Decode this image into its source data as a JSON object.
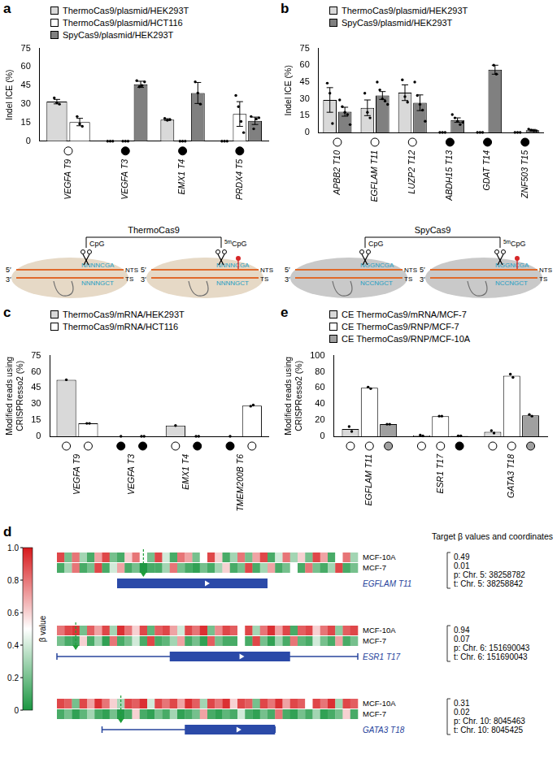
{
  "chart_data": [
    {
      "panel": "a",
      "type": "bar",
      "y_label": "Indel ICE (%)",
      "categories": [
        "VEGFA T9",
        "VEGFA T3",
        "EMX1 T4",
        "PRDX4 T5"
      ],
      "ylim": [
        0,
        75
      ],
      "yticks": [
        0,
        15,
        30,
        45,
        60,
        75
      ],
      "grid": false,
      "legend": "top-left",
      "series": [
        {
          "name": "ThermoCas9/plasmid/HEK293T",
          "color": "#d9d9d9",
          "values": [
            32,
            0,
            17.5,
            0
          ],
          "errors": [
            1.8,
            null,
            0.7,
            null
          ],
          "points": [
            [
              35,
              31,
              30
            ],
            [
              0,
              0,
              0
            ],
            [
              18.5,
              17,
              17.5
            ],
            [
              0,
              0,
              0
            ]
          ]
        },
        {
          "name": "ThermoCas9/plasmid/HCT116",
          "color": "#ffffff",
          "values": [
            15.5,
            0,
            0,
            22
          ],
          "errors": [
            3,
            null,
            null,
            10
          ],
          "points": [
            [
              20,
              14,
              12
            ],
            [
              0,
              0,
              0
            ],
            [
              0,
              0,
              0
            ],
            [
              37,
              28,
              16,
              7
            ]
          ]
        },
        {
          "name": "SpyCas9/plasmid/HEK293T",
          "color": "#808080",
          "values": [
            null,
            46,
            39,
            16.5
          ],
          "errors": [
            null,
            2.5,
            8.5,
            3
          ],
          "points": [
            [],
            [
              49,
              44,
              45,
              48
            ],
            [
              48,
              39,
              30
            ],
            [
              20,
              10,
              18,
              19
            ]
          ]
        }
      ],
      "methylation_circles": [
        [
          "#ffffff"
        ],
        [
          "#000000"
        ],
        [
          "#000000"
        ],
        [
          "#000000"
        ]
      ]
    },
    {
      "panel": "b",
      "type": "bar",
      "y_label": "Indel ICE (%)",
      "categories": [
        "APBB2 T10",
        "EGFLAM T11",
        "LUZP2 T12",
        "ABDH15 T13",
        "GDAT T14",
        "ZNF503 T15"
      ],
      "ylim": [
        0,
        75
      ],
      "yticks": [
        0,
        15,
        30,
        45,
        60,
        75
      ],
      "grid": false,
      "legend": "top-left",
      "series": [
        {
          "name": "ThermoCas9/plasmid/HEK293T",
          "color": "#d9d9d9",
          "values": [
            29,
            22,
            35.5,
            0,
            0,
            0
          ],
          "errors": [
            11,
            7,
            7,
            null,
            null,
            null
          ],
          "points": [
            [
              44,
              35,
              8
            ],
            [
              35,
              18,
              13
            ],
            [
              47,
              32,
              27
            ],
            [
              0,
              0,
              0
            ],
            [
              0,
              0,
              0
            ],
            [
              0,
              0,
              0
            ]
          ]
        },
        {
          "name": "SpyCas9/plasmid/HEK293T",
          "color": "#808080",
          "values": [
            18.5,
            33,
            26.5,
            11,
            56,
            2
          ],
          "errors": [
            4,
            3.5,
            7,
            2,
            4,
            0.7
          ],
          "points": [
            [
              29,
              23,
              18,
              16,
              7
            ],
            [
              45,
              38,
              30,
              28,
              25
            ],
            [
              45,
              33,
              25,
              20,
              10
            ],
            [
              16,
              13,
              10,
              7,
              9
            ],
            [
              60,
              52
            ],
            [
              3,
              2,
              1.5,
              1.5
            ]
          ]
        }
      ],
      "methylation_circles": [
        [
          "#ffffff"
        ],
        [
          "#ffffff"
        ],
        [
          "#ffffff"
        ],
        [
          "#000000"
        ],
        [
          "#000000"
        ],
        [
          "#000000"
        ]
      ]
    },
    {
      "panel": "c",
      "type": "bar",
      "y_label": "Modified reads using CRISPResso2 (%)",
      "categories": [
        "VEGFA T9",
        "VEGFA T3",
        "EMX1 T4",
        "TMEM200B T6"
      ],
      "ylim": [
        0,
        75
      ],
      "yticks": [
        0,
        15,
        30,
        45,
        60,
        75
      ],
      "grid": false,
      "legend": "top-left",
      "series": [
        {
          "name": "ThermoCas9/mRNA/HEK293T",
          "color": "#d9d9d9",
          "values": [
            52.5,
            0,
            10,
            0
          ],
          "points": [
            [
              52.5
            ],
            [
              0
            ],
            [
              10
            ],
            [
              0
            ]
          ]
        },
        {
          "name": "ThermoCas9/mRNA/HCT116",
          "color": "#ffffff",
          "values": [
            12,
            0,
            0,
            28.5
          ],
          "points": [
            [
              12,
              12
            ],
            [
              0,
              0
            ],
            [
              0,
              0
            ],
            [
              28,
              29
            ]
          ]
        }
      ],
      "methylation_circles": [
        [
          "#ffffff",
          "#ffffff"
        ],
        [
          "#000000",
          "#000000"
        ],
        [
          "#ffffff",
          "#000000"
        ],
        [
          "#000000",
          "#ffffff"
        ]
      ]
    },
    {
      "panel": "e",
      "type": "bar",
      "y_label": "Modified reads using CRISPResso2 (%)",
      "categories": [
        "EGFLAM T11",
        "ESR1 T17",
        "GATA3 T18"
      ],
      "ylim": [
        0,
        100
      ],
      "yticks": [
        0,
        20,
        40,
        60,
        80,
        100
      ],
      "grid": false,
      "legend": "top-left",
      "series": [
        {
          "name": "CE ThermoCas9/mRNA/MCF-7",
          "color": "#d9d9d9",
          "values": [
            9,
            1,
            5.5
          ],
          "points": [
            [
              12,
              6
            ],
            [
              1.5,
              0.5
            ],
            [
              7,
              4
            ]
          ]
        },
        {
          "name": "CE ThermoCas9/RNP/MCF-7",
          "color": "#ffffff",
          "values": [
            60,
            25,
            75
          ],
          "points": [
            [
              61,
              59
            ],
            [
              25,
              25
            ],
            [
              77,
              73
            ]
          ]
        },
        {
          "name": "CE ThermoCas9/RNP/MCF-10A",
          "color": "#a0a0a0",
          "values": [
            15,
            0.5,
            26
          ],
          "points": [
            [
              15,
              15
            ],
            [
              0.5,
              0.5
            ],
            [
              27,
              25
            ]
          ]
        }
      ],
      "methylation_circles": [
        [
          "#ffffff",
          "#ffffff",
          "#a0a0a0"
        ],
        [
          "#ffffff",
          "#ffffff",
          "#000000"
        ],
        [
          "#ffffff",
          "#ffffff",
          "#a0a0a0"
        ]
      ]
    },
    {
      "panel": "d",
      "type": "heatmap",
      "title": "Target β values and coordinates",
      "colorbar": {
        "label": "β value",
        "zlim": [
          0,
          1
        ],
        "ticks": [
          0,
          0.2,
          0.4,
          0.6,
          0.8,
          {
            "value": 1,
            "label": "1.0"
          }
        ],
        "colorscale": [
          "#1a9641",
          "#ffffff",
          "#d7191c"
        ]
      },
      "targets": [
        {
          "gene": "EGFLAM T11",
          "target_cell": 11,
          "target_beta": [
            0.49,
            0.01
          ],
          "coordinates": [
            "p: Chr. 5: 38258782",
            "t: Chr. 5: 38258842"
          ],
          "gene_model": {
            "exon": [
              8,
              28
            ]
          },
          "rows": [
            {
              "name": "MCF-10A",
              "cells": [
                0.9,
                0.2,
                0.8,
                0.3,
                0.1,
                0.7,
                0.9,
                0.2,
                0.1,
                0.6,
                0.8,
                0.49,
                0.2,
                0.9,
                0.4,
                0.1,
                0.8,
                0.7,
                0.2,
                0.5,
                0.9,
                0.6,
                0.1,
                0.3,
                0.8,
                0.2,
                0.7,
                0.9,
                0.1,
                0.4,
                0.8,
                0.3,
                0.6,
                0.2,
                0.9,
                0.7,
                0.1,
                0.5,
                0.8,
                0.3
              ]
            },
            {
              "name": "MCF-7",
              "cells": [
                0.1,
                0.3,
                0.8,
                0.1,
                0.2,
                0.9,
                0.1,
                0.4,
                0.7,
                0.1,
                0.2,
                0.01,
                0.1,
                0.1,
                0.3,
                0.8,
                0.2,
                0.1,
                0.05,
                0.2,
                0.1,
                0.3,
                0.6,
                0.1,
                0.2,
                0.9,
                0.1,
                0.3,
                0.7,
                0.1,
                0.2,
                0.5,
                0.1,
                0.8,
                0.2,
                0.1,
                0.3,
                0.9,
                0.1,
                0.2
              ]
            }
          ]
        },
        {
          "gene": "ESR1 T17",
          "target_cell": 2,
          "target_beta": [
            0.94,
            0.07
          ],
          "coordinates": [
            "p: Chr. 6: 151690043",
            "t: Chr. 6: 151690043"
          ],
          "gene_model": {
            "line": [
              0,
              40
            ],
            "exon": [
              15,
              31
            ]
          },
          "rows": [
            {
              "name": "MCF-10A",
              "cells": [
                0.8,
                0.9,
                0.94,
                0.2,
                0.85,
                0.7,
                0.9,
                0.3,
                0.95,
                0.8,
                0.6,
                0.9,
                0.15,
                0.85,
                0.9,
                0.7,
                0.4,
                0.9,
                0.8,
                0.95,
                0.2,
                0.75,
                0.9,
                0.85,
                0.5,
                0.9,
                0.3,
                0.8,
                0.95,
                0.7,
                0.9,
                0.1,
                0.85,
                0.9,
                0.6,
                0.8,
                0.9,
                0.25,
                0.85,
                0.9
              ]
            },
            {
              "name": "MCF-7",
              "cells": [
                0.2,
                0.1,
                0.07,
                0.6,
                0.1,
                0.3,
                0.05,
                0.8,
                0.1,
                0.2,
                0.4,
                0.1,
                0.9,
                0.1,
                0.15,
                0.3,
                0.7,
                0.1,
                0.2,
                0.05,
                0.85,
                0.2,
                0.1,
                0.1,
                0.5,
                0.1,
                0.9,
                0.2,
                0.05,
                0.3,
                0.1,
                0.8,
                0.15,
                0.1,
                0.4,
                0.2,
                0.1,
                0.7,
                0.1,
                0.2
              ]
            }
          ]
        },
        {
          "gene": "GATA3 T18",
          "target_cell": 8,
          "target_beta": [
            0.31,
            0.02
          ],
          "coordinates": [
            "p: Chr. 10: 8045463",
            "t: Chr. 10: 8045425"
          ],
          "gene_model": {
            "line": [
              6,
              29
            ],
            "exon": [
              17,
              29
            ]
          },
          "rows": [
            {
              "name": "MCF-10A",
              "cells": [
                0.9,
                0.85,
                0.2,
                0.9,
                0.7,
                0.95,
                0.8,
                0.6,
                0.31,
                0.9,
                0.85,
                0.95,
                0.4,
                0.9,
                0.8,
                0.9,
                0.7,
                0.95,
                0.85,
                0.3,
                0.9,
                0.8,
                0.95,
                0.6,
                0.9,
                0.85,
                0.2,
                0.9,
                0.8,
                0.95,
                0.7,
                0.9,
                0.85,
                0.5,
                0.9,
                0.8,
                0.95,
                0.3,
                0.9,
                0.85
              ]
            },
            {
              "name": "MCF-7",
              "cells": [
                0.1,
                0.2,
                0.05,
                0.15,
                0.3,
                0.1,
                0.05,
                0.2,
                0.02,
                0.1,
                0.6,
                0.1,
                0.05,
                0.2,
                0.1,
                0.3,
                0.05,
                0.1,
                0.2,
                0.7,
                0.1,
                0.05,
                0.15,
                0.1,
                0.4,
                0.1,
                0.05,
                0.2,
                0.1,
                0.8,
                0.1,
                0.05,
                0.2,
                0.1,
                0.3,
                0.05,
                0.1,
                0.2,
                0.6,
                0.1
              ]
            }
          ]
        }
      ]
    }
  ],
  "schematics": [
    {
      "panel": "a",
      "enzyme": "ThermoCas9",
      "color": "#e6d9c6",
      "site": "CpG",
      "methyl_prefix": "5m",
      "nts_seq": "NNNNCGA",
      "ts_seq": "NNNNGCT",
      "nts": "NTS",
      "ts": "TS",
      "five_prime": "5′",
      "three_prime": "3′"
    },
    {
      "panel": "b",
      "enzyme": "SpyCas9",
      "color": "#c9c9c9",
      "site": "CpG",
      "methyl_prefix": "5m",
      "nts_seq": "NGGNCGA",
      "ts_seq": "NCCNGCT",
      "nts": "NTS",
      "ts": "TS",
      "five_prime": "5′",
      "three_prime": "3′"
    }
  ]
}
